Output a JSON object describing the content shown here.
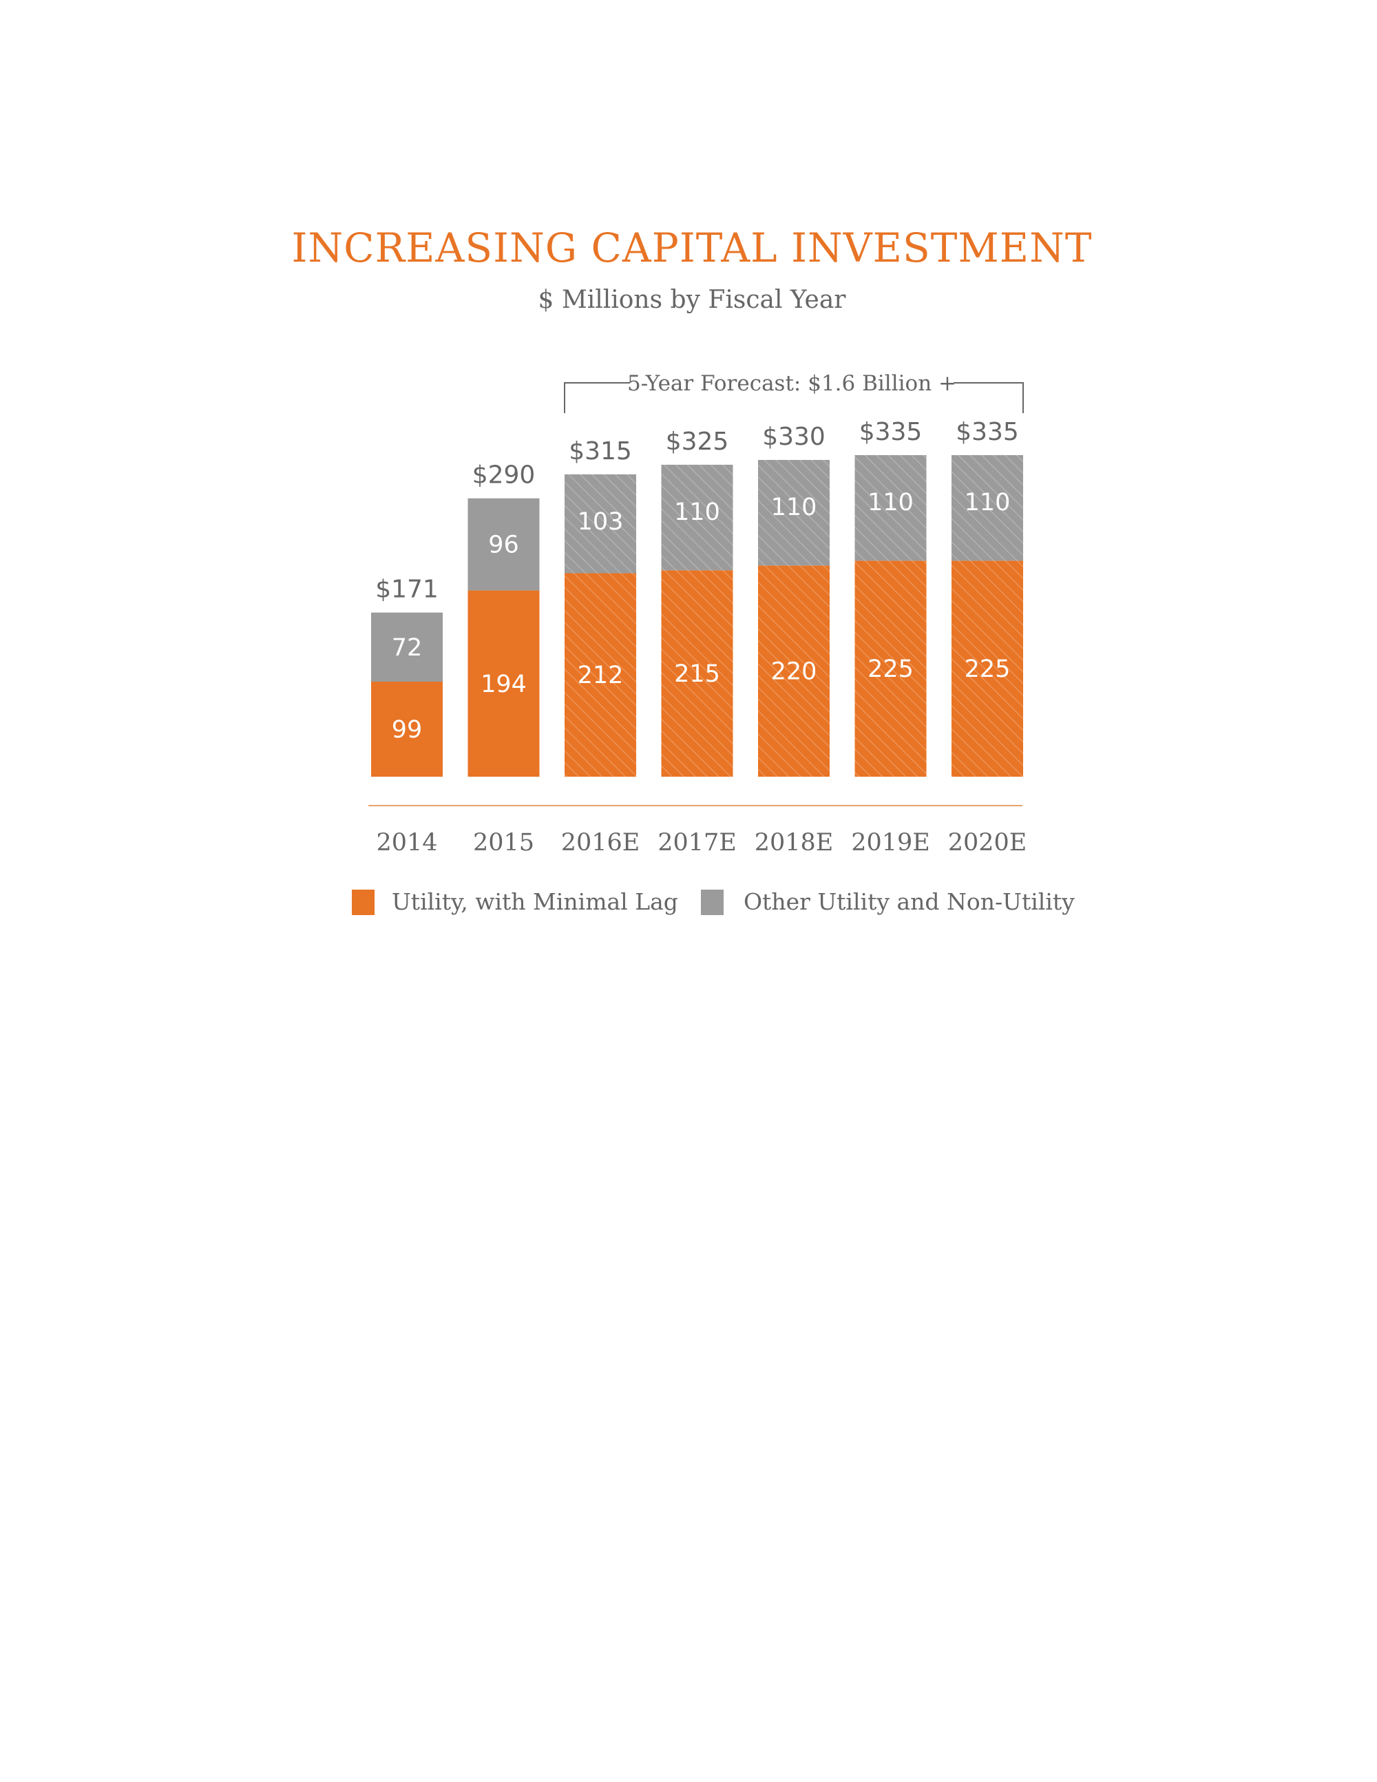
{
  "chart_data": {
    "type": "bar",
    "stacked": true,
    "title": "INCREASING CAPITAL INVESTMENT",
    "subtitle": "$ Millions by Fiscal Year",
    "categories": [
      "2014",
      "2015",
      "2016E",
      "2017E",
      "2018E",
      "2019E",
      "2020E"
    ],
    "series": [
      {
        "name": "Utility, with Minimal Lag",
        "values": [
          99,
          194,
          212,
          215,
          220,
          225,
          225
        ]
      },
      {
        "name": "Other Utility and Non-Utility",
        "values": [
          72,
          96,
          103,
          110,
          110,
          110,
          110
        ]
      }
    ],
    "totals": [
      "$171",
      "$290",
      "$315",
      "$325",
      "$330",
      "$335",
      "$335"
    ],
    "forecast_annotation": "5-Year Forecast: $1.6 Billion +",
    "forecast_span": [
      "2016E",
      "2020E"
    ],
    "hatched_categories": [
      "2016E",
      "2017E",
      "2018E",
      "2019E",
      "2020E"
    ],
    "ylim": [
      0,
      335
    ],
    "grid": false,
    "legend_position": "bottom",
    "colors": {
      "utility": "#E87425",
      "other": "#9B9B9B",
      "title": "#E87425",
      "text": "#666666",
      "axis": "#E8A46E"
    }
  }
}
